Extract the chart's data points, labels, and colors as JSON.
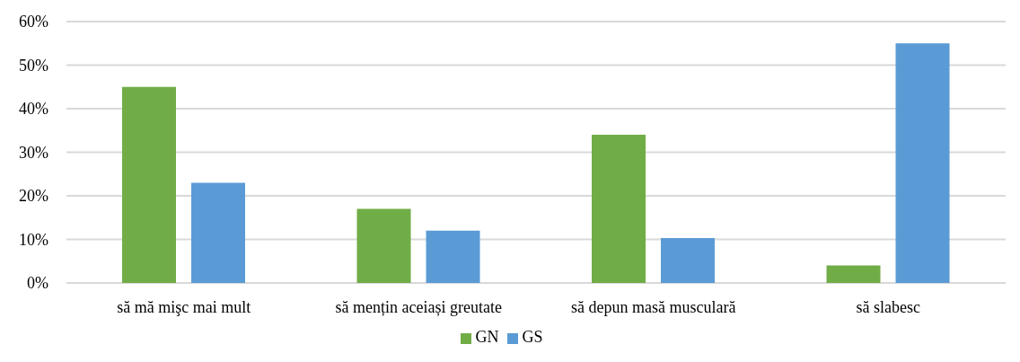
{
  "chart_data": {
    "type": "bar",
    "categories": [
      "să mă mişc mai mult",
      "să mențin aceiași greutate",
      "să depun masă musculară",
      "să slabesc"
    ],
    "series": [
      {
        "name": "GN",
        "color": "#70ad47",
        "values": [
          45,
          17,
          34,
          4
        ]
      },
      {
        "name": "GS",
        "color": "#5b9bd5",
        "values": [
          23,
          12,
          10.3,
          55
        ]
      }
    ],
    "ylim": [
      0,
      60
    ],
    "yticks": [
      {
        "value": 0,
        "label": "0%"
      },
      {
        "value": 10,
        "label": "10%"
      },
      {
        "value": 20,
        "label": "20%"
      },
      {
        "value": 30,
        "label": "30%"
      },
      {
        "value": 40,
        "label": "40%"
      },
      {
        "value": 50,
        "label": "50%"
      },
      {
        "value": 60,
        "label": "60%"
      }
    ],
    "grid": "y",
    "legend": "bottom"
  }
}
